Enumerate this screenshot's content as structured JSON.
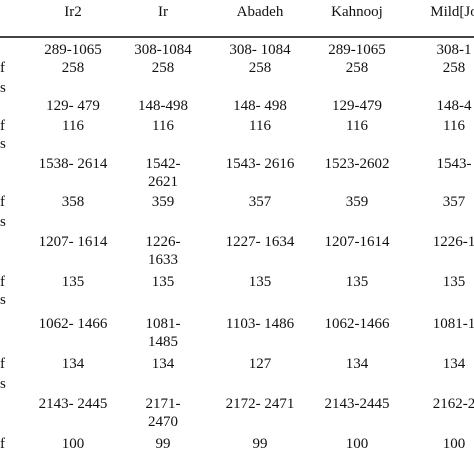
{
  "table": {
    "headers": [
      "Ir2",
      "Ir",
      "Abadeh",
      "Kahnooj",
      "Mild[Jo"
    ],
    "rows": [
      {
        "stub": "",
        "cells": [
          "289-1065",
          "308-1084",
          "308- 1084",
          "289-1065",
          "308-1"
        ]
      },
      {
        "stub": "f",
        "cells": [
          "258",
          "258",
          "258",
          "258",
          "258"
        ]
      },
      {
        "stub": "s",
        "cells": [
          "",
          "",
          "",
          "",
          ""
        ]
      },
      {
        "stub": "",
        "cells": [
          "129- 479",
          "148-498",
          "148- 498",
          "129-479",
          "148-4"
        ]
      },
      {
        "stub": "f",
        "cells": [
          "116",
          "116",
          "116",
          "116",
          "116"
        ]
      },
      {
        "stub": "s",
        "cells": [
          "",
          "",
          "",
          "",
          ""
        ]
      },
      {
        "stub": "",
        "cells": [
          "1538- 2614",
          "1542-",
          "1543- 2616",
          "1523-2602",
          "1543-"
        ]
      },
      {
        "stub": "",
        "cells": [
          "",
          "2621",
          "",
          "",
          ""
        ]
      },
      {
        "stub": "f",
        "cells": [
          "358",
          "359",
          "357",
          "359",
          "357"
        ]
      },
      {
        "stub": "s",
        "cells": [
          "",
          "",
          "",
          "",
          ""
        ]
      },
      {
        "stub": "",
        "cells": [
          "1207- 1614",
          "1226-",
          "1227- 1634",
          "1207-1614",
          "1226-1"
        ]
      },
      {
        "stub": "",
        "cells": [
          "",
          "1633",
          "",
          "",
          ""
        ]
      },
      {
        "stub": "f",
        "cells": [
          "135",
          "135",
          "135",
          "135",
          "135"
        ]
      },
      {
        "stub": "s",
        "cells": [
          "",
          "",
          "",
          "",
          ""
        ]
      },
      {
        "stub": "",
        "cells": [
          "1062- 1466",
          "1081-",
          "1103- 1486",
          "1062-1466",
          "1081-1"
        ]
      },
      {
        "stub": "",
        "cells": [
          "",
          "1485",
          "",
          "",
          ""
        ]
      },
      {
        "stub": "f",
        "cells": [
          "134",
          "134",
          "127",
          "134",
          "134"
        ]
      },
      {
        "stub": "s",
        "cells": [
          "",
          "",
          "",
          "",
          ""
        ]
      },
      {
        "stub": "",
        "cells": [
          "2143- 2445",
          "2171-",
          "2172- 2471",
          "2143-2445",
          "2162-2"
        ]
      },
      {
        "stub": "",
        "cells": [
          "",
          "2470",
          "",
          "",
          ""
        ]
      },
      {
        "stub": "f",
        "cells": [
          "100",
          "99",
          "99",
          "100",
          "100"
        ]
      }
    ]
  }
}
